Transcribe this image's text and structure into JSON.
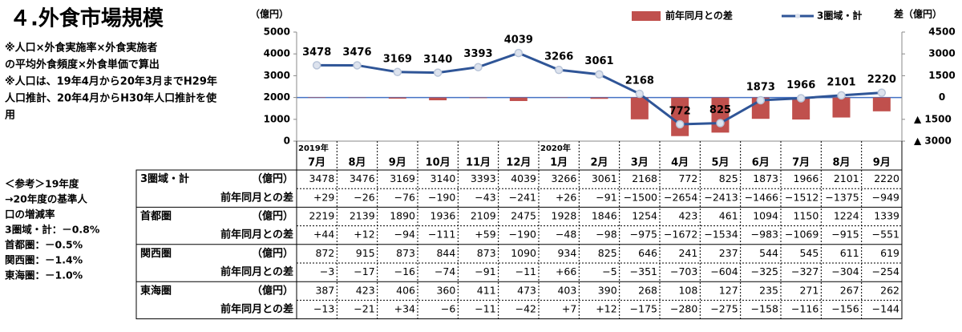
{
  "title": "４.外食市場規模",
  "notes": [
    "※人口×外食実施率×外食実施者",
    "の平均外食頻度×外食単価で算出",
    "※人口は、19年4月から20年3月までH29年",
    "人口推計、20年4月からH30年人口推計を使",
    "用"
  ],
  "reference": [
    "＜参考＞19年度",
    "→20年度の基準人",
    "口の増減率",
    "3圏域・計：－0.8%",
    "首都圏：－0.5%",
    "関西圏：－1.4%",
    "東海圏：－1.0%"
  ],
  "chart_data": {
    "type": "bar-line",
    "categories": [
      "7月",
      "8月",
      "9月",
      "10月",
      "11月",
      "12月",
      "1月",
      "2月",
      "3月",
      "4月",
      "5月",
      "6月",
      "7月",
      "8月",
      "9月"
    ],
    "year_labels": [
      "2019年",
      null,
      null,
      null,
      null,
      null,
      "2020年",
      null,
      null,
      null,
      null,
      null,
      null,
      null,
      null
    ],
    "y_label": "（億円）",
    "y2_label": "差（億円）",
    "ylim": [
      0,
      5000
    ],
    "yticks": [
      0,
      1000,
      2000,
      3000,
      4000,
      5000
    ],
    "y2lim": [
      -3000,
      4500
    ],
    "y2ticks": [
      4500,
      3000,
      1500,
      0,
      {
        "value": -1500,
        "label": "▲ 1500"
      },
      {
        "value": -3000,
        "label": "▲ 3000"
      }
    ],
    "legend": "top-right",
    "series": [
      {
        "name": "前年同月との差",
        "type": "bar",
        "axis": "y2",
        "color": "#c0504d",
        "values": [
          29,
          -26,
          -76,
          -190,
          -43,
          -241,
          26,
          -91,
          -1500,
          -2654,
          -2413,
          -1466,
          -1512,
          -1375,
          -949
        ]
      },
      {
        "name": "3圏域・計",
        "type": "line",
        "axis": "y",
        "color": "#2f5597",
        "values": [
          3478,
          3476,
          3169,
          3140,
          3393,
          4039,
          3266,
          3061,
          2168,
          772,
          825,
          1873,
          1966,
          2101,
          2220
        ]
      }
    ]
  },
  "table": {
    "rows": [
      {
        "label": "3圏域・計",
        "unit": "（億円）",
        "values": [
          3478,
          3476,
          3169,
          3140,
          3393,
          4039,
          3266,
          3061,
          2168,
          772,
          825,
          1873,
          1966,
          2101,
          2220
        ]
      },
      {
        "label": "前年同月との差",
        "values": [
          "+29",
          "−26",
          "−76",
          "−190",
          "−43",
          "−241",
          "+26",
          "−91",
          "−1500",
          "−2654",
          "−2413",
          "−1466",
          "−1512",
          "−1375",
          "−949"
        ]
      },
      {
        "label": "首都圏",
        "unit": "（億円）",
        "values": [
          2219,
          2139,
          1890,
          1936,
          2109,
          2475,
          1928,
          1846,
          1254,
          423,
          461,
          1094,
          1150,
          1224,
          1339
        ]
      },
      {
        "label": "前年同月との差",
        "values": [
          "+44",
          "+12",
          "−94",
          "−111",
          "+59",
          "−190",
          "−48",
          "−98",
          "−975",
          "−1672",
          "−1534",
          "−983",
          "−1069",
          "−915",
          "−551"
        ]
      },
      {
        "label": "関西圏",
        "unit": "（億円）",
        "values": [
          872,
          915,
          873,
          844,
          873,
          1090,
          934,
          825,
          646,
          241,
          237,
          544,
          545,
          611,
          619
        ]
      },
      {
        "label": "前年同月との差",
        "values": [
          "−3",
          "−17",
          "−16",
          "−74",
          "−91",
          "−11",
          "+66",
          "−5",
          "−351",
          "−703",
          "−604",
          "−325",
          "−327",
          "−304",
          "−254"
        ]
      },
      {
        "label": "東海圏",
        "unit": "（億円）",
        "values": [
          387,
          423,
          406,
          360,
          411,
          473,
          403,
          390,
          268,
          108,
          127,
          235,
          271,
          267,
          262
        ]
      },
      {
        "label": "前年同月との差",
        "values": [
          "−13",
          "−21",
          "+34",
          "−6",
          "−11",
          "−42",
          "+7",
          "+12",
          "−175",
          "−280",
          "−275",
          "−158",
          "−116",
          "−156",
          "−144"
        ]
      }
    ]
  }
}
